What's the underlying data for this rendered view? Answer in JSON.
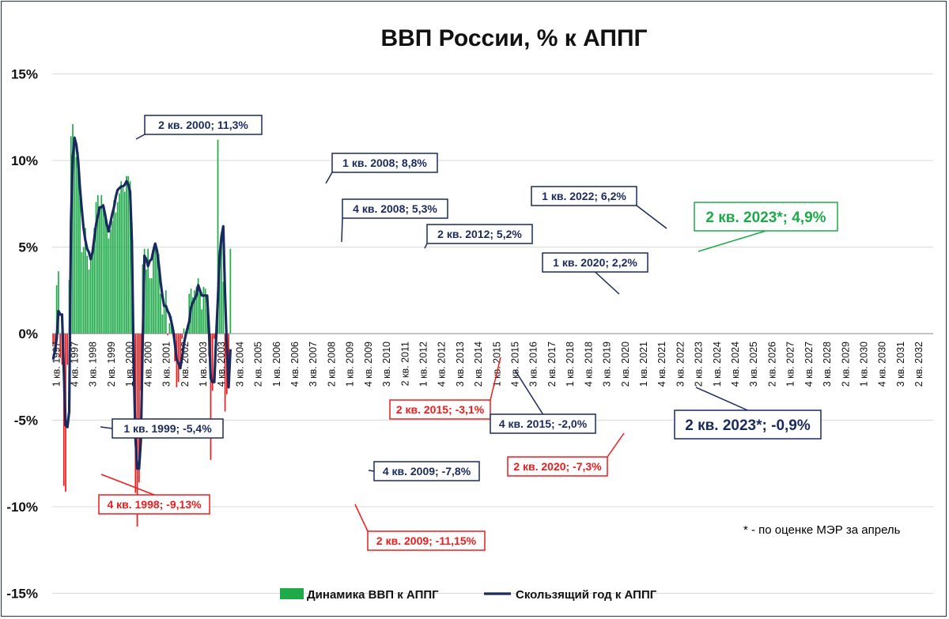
{
  "chart_data": {
    "type": "bar+line",
    "title": "ВВП России, % к АППГ",
    "ylim": [
      -15,
      15
    ],
    "y_ticks": [
      "15%",
      "10%",
      "5%",
      "0%",
      "-5%",
      "-10%",
      "-15%"
    ],
    "y_tick_values": [
      15,
      10,
      5,
      0,
      -5,
      -10,
      -15
    ],
    "x_tick_labels": [
      "1 кв. 1997",
      "4 кв. 1997",
      "3 кв. 1998",
      "2 кв. 1999",
      "1 кв. 2000",
      "4 кв. 2000",
      "3 кв. 2001",
      "2 кв. 2002",
      "1 кв. 2003",
      "4 кв. 2003",
      "3 кв. 2004",
      "2 кв. 2005",
      "1 кв. 2006",
      "4 кв. 2006",
      "3 кв. 2007",
      "2 кв. 2008",
      "1 кв. 2009",
      "4 кв. 2009",
      "3 кв. 2010",
      "2 кв. 2011",
      "1 кв. 2012",
      "4 кв. 2012",
      "3 кв. 2013",
      "2 кв. 2014",
      "1 кв. 2015",
      "4 кв. 2015",
      "3 кв. 2016",
      "2 кв. 2017",
      "1 кв. 2018",
      "4 кв. 2018",
      "3 кв. 2019",
      "2 кв. 2020",
      "1 кв. 2021",
      "4 кв. 2021",
      "3 кв. 2022",
      "2 кв. 2023",
      "1 кв. 2024",
      "4 кв. 2024",
      "3 кв. 2025",
      "2 кв. 2026",
      "1 кв. 2027",
      "4 кв. 2027",
      "3 кв. 2028",
      "2 кв. 2029",
      "1 кв. 2030",
      "4 кв. 2030",
      "3 кв. 2031",
      "2 кв. 2032"
    ],
    "series": [
      {
        "name": "Динамика ВВП к АППГ",
        "kind": "bar",
        "color_positive": "#1faa4a",
        "color_negative": "#ee1c1c",
        "values": [
          -0.6,
          -0.8,
          2.8,
          3.6,
          -1.4,
          -1.8,
          -8.8,
          -9.13,
          -1.8,
          3.1,
          11.4,
          12.1,
          11.4,
          10.2,
          10.5,
          8.7,
          4.7,
          5.0,
          6.1,
          4.5,
          3.7,
          4.3,
          4.8,
          6.1,
          7.6,
          8.0,
          7.2,
          8.0,
          7.5,
          6.9,
          6.2,
          5.5,
          6.0,
          6.5,
          7.7,
          7.0,
          7.6,
          8.1,
          8.8,
          8.4,
          8.2,
          9.1,
          9.1,
          8.8,
          6.4,
          -0.3,
          -9.2,
          -11.15,
          -8.6,
          -3.3,
          4.0,
          4.9,
          3.7,
          4.9,
          3.2,
          3.2,
          5.0,
          5.1,
          4.9,
          4.6,
          2.3,
          1.1,
          1.6,
          2.5,
          -0.1,
          0.6,
          1.0,
          0.4,
          -1.6,
          -3.1,
          -2.8,
          -1.8,
          -0.3,
          0.3,
          0.1,
          0.5,
          2.3,
          2.6,
          2.1,
          2.5,
          2.7,
          3.2,
          2.6,
          1.4,
          2.7,
          2.6,
          1.5,
          -1.3,
          -7.3,
          -3.3,
          -0.3,
          0.5,
          11.2,
          4.9,
          5.8,
          3.0,
          -4.5,
          -3.5,
          -1.8,
          4.9
        ]
      },
      {
        "name": "Скользящий год к АППГ",
        "kind": "line",
        "color": "#1b2a5e",
        "values": [
          -1.5,
          -1.0,
          -0.3,
          1.3,
          1.1,
          1.1,
          -2.2,
          -5.3,
          -5.4,
          -4.5,
          6.5,
          10.2,
          11.3,
          10.9,
          10.0,
          8.4,
          7.2,
          6.1,
          5.4,
          4.9,
          4.7,
          4.3,
          4.7,
          5.5,
          6.3,
          6.8,
          7.3,
          7.3,
          7.4,
          6.9,
          6.3,
          5.9,
          6.4,
          6.9,
          7.3,
          7.9,
          8.3,
          8.4,
          8.5,
          8.5,
          8.6,
          8.8,
          8.6,
          8.2,
          5.3,
          -1.8,
          -6.1,
          -7.8,
          -7.8,
          -6.2,
          -0.6,
          4.5,
          4.3,
          3.9,
          4.2,
          4.3,
          4.8,
          5.2,
          4.8,
          4.0,
          3.0,
          2.2,
          1.6,
          1.6,
          1.3,
          1.1,
          0.7,
          0.2,
          -0.6,
          -1.5,
          -1.7,
          -2.0,
          -1.4,
          -0.6,
          -0.1,
          0.3,
          0.7,
          1.5,
          1.8,
          2.0,
          2.2,
          2.8,
          2.5,
          2.2,
          2.2,
          2.2,
          2.2,
          0.3,
          -2.6,
          -2.8,
          -2.8,
          -0.3,
          2.0,
          4.5,
          5.6,
          6.2,
          2.3,
          -0.8,
          -3.1,
          -0.9
        ]
      }
    ],
    "annotations": [
      {
        "text": "2 кв. 2000; 11,3%",
        "color": "#1b2a5e"
      },
      {
        "text": "1 кв. 2008; 8,8%",
        "color": "#1b2a5e"
      },
      {
        "text": "4 кв. 2008; 5,3%",
        "color": "#1b2a5e"
      },
      {
        "text": "2 кв. 2012; 5,2%",
        "color": "#1b2a5e"
      },
      {
        "text": "1 кв. 2022; 6,2%",
        "color": "#1b2a5e"
      },
      {
        "text": "1 кв. 2020; 2,2%",
        "color": "#1b2a5e"
      },
      {
        "text": "1 кв. 1999; -5,4%",
        "color": "#1b2a5e"
      },
      {
        "text": "4 кв. 1998; -9,13%",
        "color": "#ee1c1c"
      },
      {
        "text": "4 кв. 2009; -7,8%",
        "color": "#1b2a5e"
      },
      {
        "text": "2 кв. 2009; -11,15%",
        "color": "#ee1c1c"
      },
      {
        "text": "2 кв. 2015; -3,1%",
        "color": "#ee1c1c"
      },
      {
        "text": "4 кв. 2015; -2,0%",
        "color": "#1b2a5e"
      },
      {
        "text": "2 кв. 2020; -7,3%",
        "color": "#ee1c1c"
      },
      {
        "text": "2 кв. 2023*; 4,9%",
        "color": "#1faa4a"
      },
      {
        "text": "2 кв. 2023*; -0,9%",
        "color": "#1b2a5e"
      }
    ],
    "legend": {
      "bar_label": "Динамика ВВП к АППГ",
      "line_label": "Скользящий год к АППГ",
      "position": "bottom"
    },
    "footnote": "* - по оценке МЭР за апрель",
    "grid": "horizontal"
  }
}
